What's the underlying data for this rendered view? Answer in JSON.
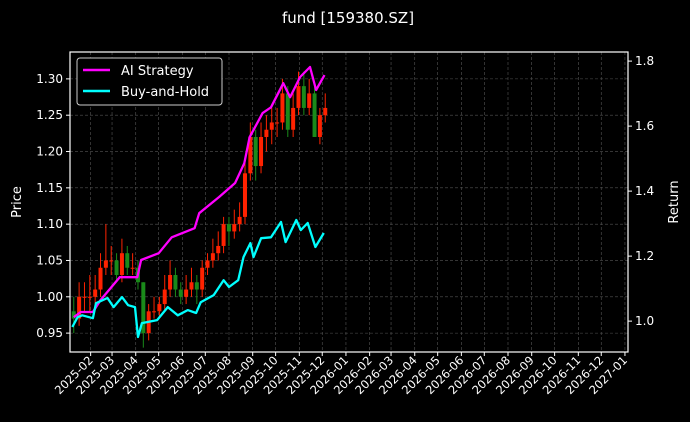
{
  "chart_data": {
    "type": "line",
    "title": "fund [159380.SZ]",
    "xlabel": "",
    "ylabel": "Price",
    "ylabel_right": "Return",
    "xlim": [
      "2025-01-05",
      "2027-01-05"
    ],
    "ylim": [
      0.924,
      1.337
    ],
    "ylim_right": [
      0.905,
      1.828
    ],
    "grid": true,
    "legend_placement": "top-left",
    "background": "#000000",
    "x_tick_labels": [
      "2025-02",
      "2025-03",
      "2025-04",
      "2025-05",
      "2025-06",
      "2025-07",
      "2025-08",
      "2025-09",
      "2025-10",
      "2025-11",
      "2025-12",
      "2026-01",
      "2026-02",
      "2026-03",
      "2026-04",
      "2026-05",
      "2026-06",
      "2026-07",
      "2026-08",
      "2026-09",
      "2026-10",
      "2026-11",
      "2026-12",
      "2027-01"
    ],
    "y_tick_labels": [
      "0.95",
      "1.00",
      "1.05",
      "1.10",
      "1.15",
      "1.20",
      "1.25",
      "1.30"
    ],
    "y_right_tick_labels": [
      "1.0",
      "1.2",
      "1.4",
      "1.6",
      "1.8"
    ],
    "candle_colors": {
      "up": "#ff2200",
      "down": "#1a8a1a"
    },
    "candles_ohlc": [
      [
        "2025-01-06",
        0.98,
        1.0,
        0.95,
        0.97
      ],
      [
        "2025-01-13",
        0.97,
        1.02,
        0.96,
        1.0
      ],
      [
        "2025-01-20",
        1.0,
        1.02,
        0.98,
        1.0
      ],
      [
        "2025-01-27",
        1.0,
        1.03,
        0.98,
        1.0
      ],
      [
        "2025-02-03",
        1.0,
        1.03,
        0.99,
        1.01
      ],
      [
        "2025-02-10",
        1.01,
        1.06,
        1.0,
        1.04
      ],
      [
        "2025-02-17",
        1.04,
        1.1,
        1.03,
        1.05
      ],
      [
        "2025-02-24",
        1.05,
        1.07,
        1.03,
        1.05
      ],
      [
        "2025-03-03",
        1.05,
        1.06,
        1.02,
        1.03
      ],
      [
        "2025-03-10",
        1.03,
        1.08,
        1.02,
        1.06
      ],
      [
        "2025-03-17",
        1.06,
        1.07,
        1.03,
        1.04
      ],
      [
        "2025-03-24",
        1.04,
        1.06,
        1.03,
        1.04
      ],
      [
        "2025-03-31",
        1.04,
        1.05,
        1.01,
        1.02
      ],
      [
        "2025-04-07",
        1.02,
        1.02,
        0.93,
        0.95
      ],
      [
        "2025-04-14",
        0.95,
        0.99,
        0.94,
        0.98
      ],
      [
        "2025-04-21",
        0.98,
        1.0,
        0.97,
        0.98
      ],
      [
        "2025-04-28",
        0.98,
        1.0,
        0.97,
        0.99
      ],
      [
        "2025-05-05",
        0.99,
        1.03,
        0.98,
        1.01
      ],
      [
        "2025-05-12",
        1.01,
        1.05,
        1.0,
        1.03
      ],
      [
        "2025-05-19",
        1.03,
        1.04,
        1.0,
        1.01
      ],
      [
        "2025-05-26",
        1.01,
        1.02,
        0.99,
        1.0
      ],
      [
        "2025-06-02",
        1.0,
        1.03,
        0.99,
        1.01
      ],
      [
        "2025-06-09",
        1.01,
        1.04,
        1.0,
        1.02
      ],
      [
        "2025-06-16",
        1.02,
        1.03,
        0.99,
        1.01
      ],
      [
        "2025-06-23",
        1.01,
        1.05,
        1.0,
        1.04
      ],
      [
        "2025-06-30",
        1.04,
        1.06,
        1.03,
        1.05
      ],
      [
        "2025-07-07",
        1.05,
        1.08,
        1.04,
        1.06
      ],
      [
        "2025-07-14",
        1.06,
        1.09,
        1.05,
        1.07
      ],
      [
        "2025-07-21",
        1.07,
        1.11,
        1.06,
        1.1
      ],
      [
        "2025-07-28",
        1.1,
        1.11,
        1.07,
        1.09
      ],
      [
        "2025-08-04",
        1.09,
        1.12,
        1.08,
        1.1
      ],
      [
        "2025-08-11",
        1.1,
        1.13,
        1.09,
        1.11
      ],
      [
        "2025-08-18",
        1.11,
        1.19,
        1.1,
        1.17
      ],
      [
        "2025-08-25",
        1.17,
        1.24,
        1.16,
        1.22
      ],
      [
        "2025-09-01",
        1.22,
        1.23,
        1.16,
        1.18
      ],
      [
        "2025-09-08",
        1.18,
        1.24,
        1.17,
        1.22
      ],
      [
        "2025-09-15",
        1.22,
        1.25,
        1.2,
        1.23
      ],
      [
        "2025-09-22",
        1.23,
        1.26,
        1.21,
        1.24
      ],
      [
        "2025-09-29",
        1.24,
        1.26,
        1.22,
        1.24
      ],
      [
        "2025-10-06",
        1.24,
        1.3,
        1.23,
        1.28
      ],
      [
        "2025-10-13",
        1.28,
        1.29,
        1.22,
        1.23
      ],
      [
        "2025-10-20",
        1.23,
        1.28,
        1.22,
        1.26
      ],
      [
        "2025-10-27",
        1.26,
        1.31,
        1.25,
        1.29
      ],
      [
        "2025-11-03",
        1.29,
        1.31,
        1.25,
        1.26
      ],
      [
        "2025-11-10",
        1.26,
        1.3,
        1.25,
        1.28
      ],
      [
        "2025-11-17",
        1.28,
        1.29,
        1.22,
        1.22
      ],
      [
        "2025-11-24",
        1.22,
        1.26,
        1.21,
        1.25
      ],
      [
        "2025-12-01",
        1.25,
        1.28,
        1.24,
        1.26
      ]
    ],
    "series": [
      {
        "name": "AI Strategy",
        "color": "#ff00ff",
        "axis": "right",
        "x": [
          "2025-01-10",
          "2025-01-19",
          "2025-02-04",
          "2025-02-14",
          "2025-03-11",
          "2025-04-03",
          "2025-04-08",
          "2025-05-01",
          "2025-05-18",
          "2025-06-17",
          "2025-06-23",
          "2025-07-19",
          "2025-08-09",
          "2025-08-21",
          "2025-08-28",
          "2025-09-14",
          "2025-09-25",
          "2025-10-11",
          "2025-10-20",
          "2025-11-02",
          "2025-11-15",
          "2025-11-23",
          "2025-12-04"
        ],
        "values": [
          1.012,
          1.028,
          1.028,
          1.065,
          1.135,
          1.135,
          1.188,
          1.209,
          1.258,
          1.286,
          1.332,
          1.382,
          1.425,
          1.486,
          1.566,
          1.64,
          1.658,
          1.732,
          1.689,
          1.751,
          1.782,
          1.711,
          1.757
        ]
      },
      {
        "name": "Buy-and-Hold",
        "color": "#00ffff",
        "axis": "right",
        "x": [
          "2025-01-08",
          "2025-01-15",
          "2025-01-21",
          "2025-02-04",
          "2025-02-08",
          "2025-02-23",
          "2025-03-03",
          "2025-03-14",
          "2025-03-22",
          "2025-03-31",
          "2025-04-04",
          "2025-04-09",
          "2025-04-29",
          "2025-05-13",
          "2025-05-26",
          "2025-06-08",
          "2025-06-19",
          "2025-06-25",
          "2025-07-12",
          "2025-07-25",
          "2025-08-01",
          "2025-08-13",
          "2025-08-20",
          "2025-08-29",
          "2025-09-02",
          "2025-09-12",
          "2025-09-25",
          "2025-10-08",
          "2025-10-14",
          "2025-10-28",
          "2025-11-03",
          "2025-11-12",
          "2025-11-22",
          "2025-12-03"
        ],
        "values": [
          0.982,
          1.012,
          1.018,
          1.009,
          1.055,
          1.071,
          1.043,
          1.074,
          1.049,
          1.043,
          0.951,
          0.994,
          1.003,
          1.043,
          1.018,
          1.034,
          1.025,
          1.058,
          1.08,
          1.126,
          1.105,
          1.126,
          1.197,
          1.24,
          1.197,
          1.255,
          1.258,
          1.305,
          1.243,
          1.311,
          1.28,
          1.302,
          1.228,
          1.271
        ]
      }
    ]
  }
}
